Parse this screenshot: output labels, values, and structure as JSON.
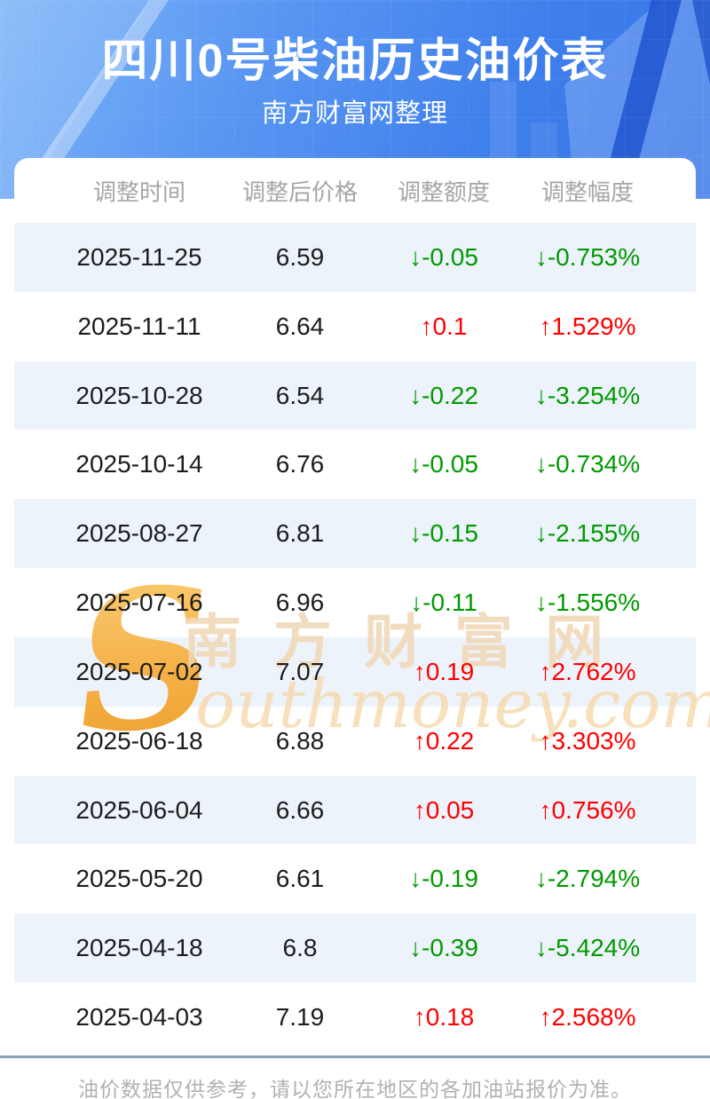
{
  "header": {
    "title": "四川0号柴油历史油价表",
    "subtitle": "南方财富网整理"
  },
  "table": {
    "columns": [
      "调整时间",
      "调整后价格",
      "调整额度",
      "调整幅度"
    ],
    "rows": [
      {
        "date": "2025-11-25",
        "price": "6.59",
        "change": "↓-0.05",
        "rate": "↓-0.753%",
        "direction": "down"
      },
      {
        "date": "2025-11-11",
        "price": "6.64",
        "change": "↑0.1",
        "rate": "↑1.529%",
        "direction": "up"
      },
      {
        "date": "2025-10-28",
        "price": "6.54",
        "change": "↓-0.22",
        "rate": "↓-3.254%",
        "direction": "down"
      },
      {
        "date": "2025-10-14",
        "price": "6.76",
        "change": "↓-0.05",
        "rate": "↓-0.734%",
        "direction": "down"
      },
      {
        "date": "2025-08-27",
        "price": "6.81",
        "change": "↓-0.15",
        "rate": "↓-2.155%",
        "direction": "down"
      },
      {
        "date": "2025-07-16",
        "price": "6.96",
        "change": "↓-0.11",
        "rate": "↓-1.556%",
        "direction": "down"
      },
      {
        "date": "2025-07-02",
        "price": "7.07",
        "change": "↑0.19",
        "rate": "↑2.762%",
        "direction": "up"
      },
      {
        "date": "2025-06-18",
        "price": "6.88",
        "change": "↑0.22",
        "rate": "↑3.303%",
        "direction": "up"
      },
      {
        "date": "2025-06-04",
        "price": "6.66",
        "change": "↑0.05",
        "rate": "↑0.756%",
        "direction": "up"
      },
      {
        "date": "2025-05-20",
        "price": "6.61",
        "change": "↓-0.19",
        "rate": "↓-2.794%",
        "direction": "down"
      },
      {
        "date": "2025-04-18",
        "price": "6.8",
        "change": "↓-0.39",
        "rate": "↓-5.424%",
        "direction": "down"
      },
      {
        "date": "2025-04-03",
        "price": "7.19",
        "change": "↑0.18",
        "rate": "↑2.568%",
        "direction": "up"
      }
    ]
  },
  "chart_data": {
    "type": "table",
    "title": "四川0号柴油历史油价表",
    "subtitle": "南方财富网整理",
    "columns": [
      "调整时间",
      "调整后价格",
      "调整额度",
      "调整幅度"
    ],
    "rows": [
      [
        "2025-11-25",
        6.59,
        -0.05,
        "-0.753%"
      ],
      [
        "2025-11-11",
        6.64,
        0.1,
        "1.529%"
      ],
      [
        "2025-10-28",
        6.54,
        -0.22,
        "-3.254%"
      ],
      [
        "2025-10-14",
        6.76,
        -0.05,
        "-0.734%"
      ],
      [
        "2025-08-27",
        6.81,
        -0.15,
        "-2.155%"
      ],
      [
        "2025-07-16",
        6.96,
        -0.11,
        "-1.556%"
      ],
      [
        "2025-07-02",
        7.07,
        0.19,
        "2.762%"
      ],
      [
        "2025-06-18",
        6.88,
        0.22,
        "3.303%"
      ],
      [
        "2025-06-04",
        6.66,
        0.05,
        "0.756%"
      ],
      [
        "2025-05-20",
        6.61,
        -0.19,
        "-2.794%"
      ],
      [
        "2025-04-18",
        6.8,
        -0.39,
        "-5.424%"
      ],
      [
        "2025-04-03",
        7.19,
        0.18,
        "2.568%"
      ]
    ]
  },
  "watermark": {
    "initial": "S",
    "cn": "南方财富网",
    "en": "outhmoney.com"
  },
  "footer": {
    "note": "油价数据仅供参考，请以您所在地区的各加油站报价为准。"
  },
  "colors": {
    "up_red": "#fd0000",
    "down_green": "#009a00",
    "stripe_blue": "#edf3fb",
    "hero_blue": "#4080ec",
    "divider": "#87a1bb",
    "header_gray": "#a6a6a6"
  }
}
